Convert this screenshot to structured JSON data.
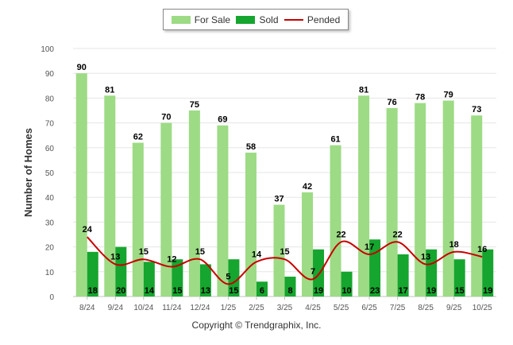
{
  "chart_data": {
    "type": "bar",
    "ylabel": "Number of Homes",
    "ylim": [
      0,
      100
    ],
    "yticks": [
      0,
      10,
      20,
      30,
      40,
      50,
      60,
      70,
      80,
      90,
      100
    ],
    "grid": true,
    "legend_position": "top-center",
    "categories": [
      "8/24",
      "9/24",
      "10/24",
      "11/24",
      "12/24",
      "1/25",
      "2/25",
      "3/25",
      "4/25",
      "5/25",
      "6/25",
      "7/25",
      "8/25",
      "9/25",
      "10/25"
    ],
    "series": [
      {
        "name": "For Sale",
        "type": "bar",
        "color": "#9ddb85",
        "values": [
          90,
          81,
          62,
          70,
          75,
          69,
          58,
          37,
          42,
          61,
          81,
          76,
          78,
          79,
          73
        ]
      },
      {
        "name": "Sold",
        "type": "bar",
        "color": "#16a52e",
        "values": [
          18,
          20,
          14,
          15,
          13,
          15,
          6,
          8,
          19,
          10,
          23,
          17,
          19,
          15,
          19
        ]
      },
      {
        "name": "Pended",
        "type": "line",
        "color": "#c80000",
        "values": [
          24,
          13,
          15,
          12,
          15,
          5,
          14,
          15,
          7,
          22,
          17,
          22,
          13,
          18,
          16
        ]
      }
    ]
  },
  "legend": {
    "for_sale": "For Sale",
    "sold": "Sold",
    "pended": "Pended"
  },
  "copyright": "Copyright © Trendgraphix, Inc."
}
